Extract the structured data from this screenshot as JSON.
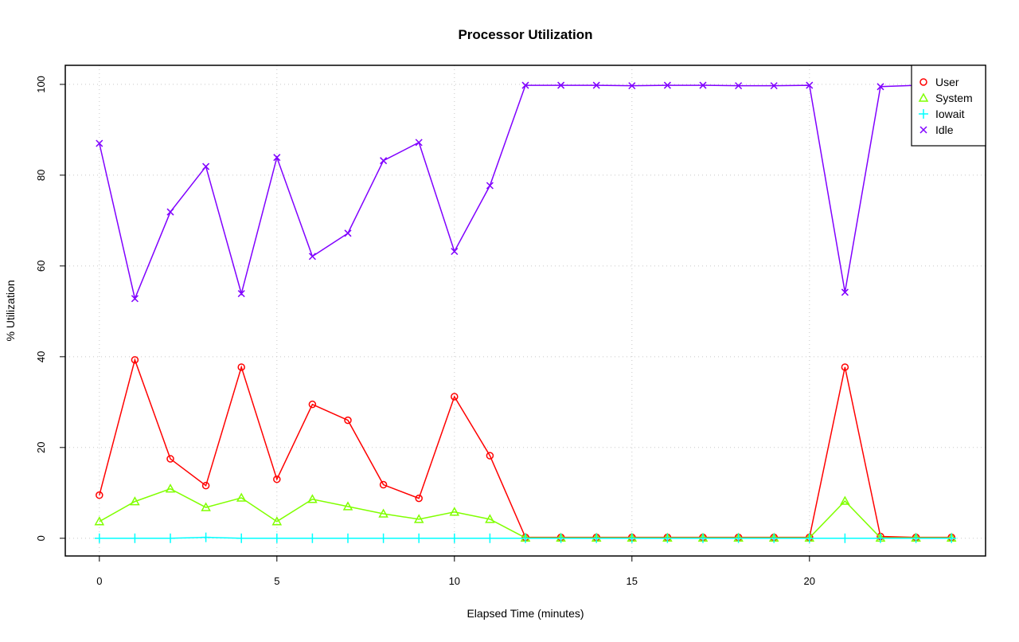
{
  "chart_data": {
    "type": "line",
    "title": "Processor Utilization",
    "xlabel": "Elapsed Time (minutes)",
    "ylabel": "% Utilization",
    "xlim": [
      -0.96,
      24.96
    ],
    "ylim": [
      -3.9,
      104.2
    ],
    "xticks": [
      0,
      5,
      10,
      15,
      20
    ],
    "yticks": [
      0,
      20,
      40,
      60,
      80,
      100
    ],
    "grid": true,
    "legend_position": "top-right",
    "x": [
      0,
      1,
      2,
      3,
      4,
      5,
      6,
      7,
      8,
      9,
      10,
      11,
      12,
      13,
      14,
      15,
      16,
      17,
      18,
      19,
      20,
      21,
      22,
      23,
      24
    ],
    "series": [
      {
        "name": "User",
        "color": "#ff0000",
        "marker": "circle",
        "values": [
          9.5,
          39.3,
          17.5,
          11.6,
          37.7,
          13.0,
          29.5,
          26.0,
          11.8,
          8.8,
          31.2,
          18.2,
          0.2,
          0.2,
          0.2,
          0.2,
          0.2,
          0.2,
          0.2,
          0.2,
          0.2,
          37.7,
          0.4,
          0.2,
          0.2
        ]
      },
      {
        "name": "System",
        "color": "#80ff00",
        "marker": "triangle",
        "values": [
          3.7,
          8.1,
          10.9,
          6.8,
          8.9,
          3.7,
          8.6,
          7.0,
          5.4,
          4.2,
          5.8,
          4.2,
          0.1,
          0.1,
          0.1,
          0.1,
          0.1,
          0.1,
          0.1,
          0.1,
          0.1,
          8.2,
          0.1,
          0.1,
          0.1
        ]
      },
      {
        "name": "Iowait",
        "color": "#00ffff",
        "marker": "plus",
        "values": [
          0,
          0,
          0,
          0.2,
          0,
          0,
          0,
          0,
          0,
          0,
          0,
          0,
          0,
          0,
          0,
          0,
          0,
          0,
          0,
          0,
          0,
          0,
          0,
          0,
          0
        ]
      },
      {
        "name": "Idle",
        "color": "#8000ff",
        "marker": "cross",
        "values": [
          87.0,
          52.8,
          71.9,
          81.9,
          53.9,
          83.9,
          62.1,
          67.2,
          83.2,
          87.2,
          63.2,
          77.7,
          99.8,
          99.8,
          99.8,
          99.7,
          99.8,
          99.8,
          99.7,
          99.7,
          99.8,
          54.2,
          99.5,
          99.8,
          99.8
        ]
      }
    ]
  }
}
